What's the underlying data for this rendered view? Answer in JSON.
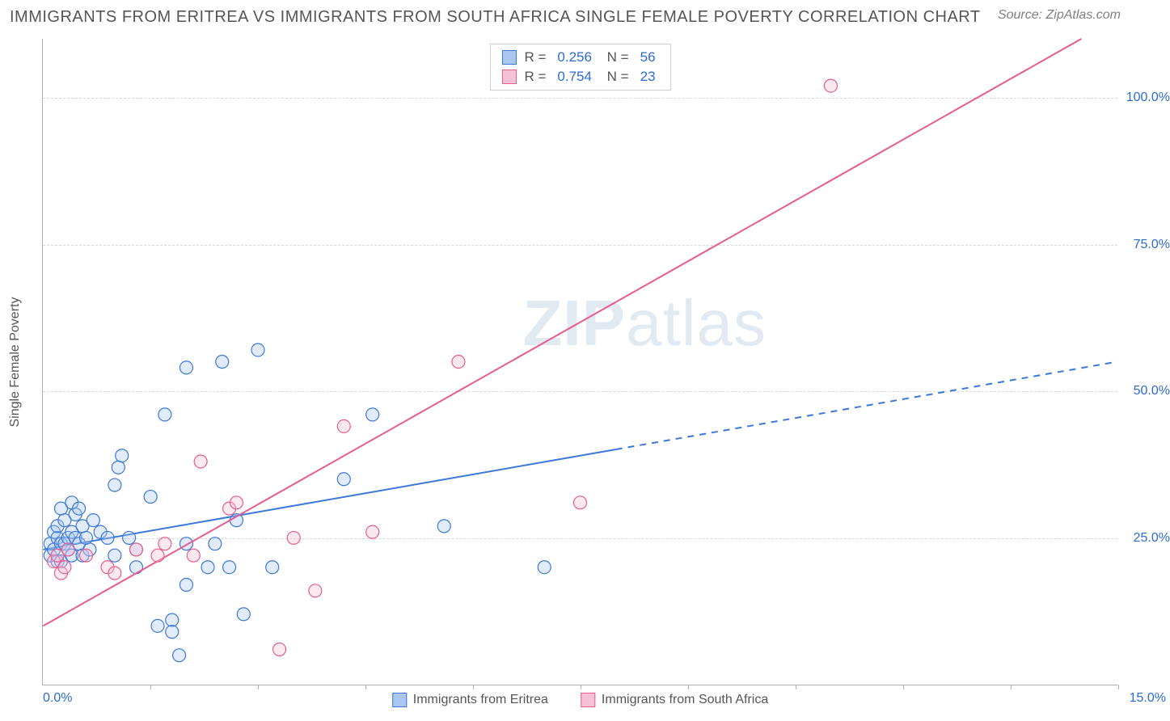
{
  "title": "IMMIGRANTS FROM ERITREA VS IMMIGRANTS FROM SOUTH AFRICA SINGLE FEMALE POVERTY CORRELATION CHART",
  "source": "Source: ZipAtlas.com",
  "watermark_bold": "ZIP",
  "watermark_thin": "atlas",
  "chart": {
    "type": "scatter-correlation",
    "background_color": "#ffffff",
    "grid_color": "#d8d8d8",
    "axis_color": "#b0b0b0",
    "value_color": "#2d6bd4",
    "label_color": "#555555",
    "xlim": [
      0,
      15
    ],
    "ylim": [
      0,
      110
    ],
    "y_ticks": [
      25,
      50,
      75,
      100
    ],
    "y_tick_labels": [
      "25.0%",
      "50.0%",
      "75.0%",
      "100.0%"
    ],
    "x_tick_minor": [
      1.5,
      3.0,
      4.5,
      6.0,
      7.5,
      9.0,
      10.5,
      12.0,
      13.5,
      15.0
    ],
    "x_tick_left": "0.0%",
    "x_tick_right": "15.0%",
    "y_label": "Single Female Poverty",
    "label_fontsize": 16,
    "title_fontsize": 20,
    "marker_radius": 8,
    "marker_fill_opacity": 0.35,
    "marker_stroke_width": 1.2,
    "series": [
      {
        "id": "eritrea",
        "label": "Immigrants from Eritrea",
        "color_stroke": "#3b78d8",
        "color_fill": "#a9c7f0",
        "R": "0.256",
        "N": "56",
        "line": {
          "x1": 0,
          "y1": 23,
          "x2": 15,
          "y2": 55,
          "solid_until_x": 8.0,
          "width": 2
        },
        "points": [
          [
            0.1,
            24
          ],
          [
            0.1,
            22
          ],
          [
            0.15,
            26
          ],
          [
            0.15,
            23
          ],
          [
            0.2,
            25
          ],
          [
            0.2,
            27
          ],
          [
            0.25,
            24
          ],
          [
            0.2,
            21
          ],
          [
            0.25,
            30
          ],
          [
            0.3,
            28
          ],
          [
            0.25,
            21
          ],
          [
            0.3,
            24
          ],
          [
            0.35,
            23
          ],
          [
            0.35,
            25
          ],
          [
            0.4,
            26
          ],
          [
            0.4,
            22
          ],
          [
            0.45,
            25
          ],
          [
            0.45,
            29
          ],
          [
            0.4,
            31
          ],
          [
            0.5,
            30
          ],
          [
            0.5,
            24
          ],
          [
            0.55,
            22
          ],
          [
            0.55,
            27
          ],
          [
            0.6,
            25
          ],
          [
            0.65,
            23
          ],
          [
            0.7,
            28
          ],
          [
            0.8,
            26
          ],
          [
            0.9,
            25
          ],
          [
            1.0,
            22
          ],
          [
            1.0,
            34
          ],
          [
            1.05,
            37
          ],
          [
            1.1,
            39
          ],
          [
            1.2,
            25
          ],
          [
            1.3,
            23
          ],
          [
            1.3,
            20
          ],
          [
            1.5,
            32
          ],
          [
            1.6,
            10
          ],
          [
            1.7,
            46
          ],
          [
            1.8,
            11
          ],
          [
            1.8,
            9
          ],
          [
            1.9,
            5
          ],
          [
            2.0,
            54
          ],
          [
            2.0,
            24
          ],
          [
            2.0,
            17
          ],
          [
            2.3,
            20
          ],
          [
            2.4,
            24
          ],
          [
            2.5,
            55
          ],
          [
            2.6,
            20
          ],
          [
            2.7,
            28
          ],
          [
            2.8,
            12
          ],
          [
            3.0,
            57
          ],
          [
            3.2,
            20
          ],
          [
            4.2,
            35
          ],
          [
            4.6,
            46
          ],
          [
            5.6,
            27
          ],
          [
            7.0,
            20
          ]
        ]
      },
      {
        "id": "south_africa",
        "label": "Immigrants from South Africa",
        "color_stroke": "#e75c8d",
        "color_fill": "#f6c1d4",
        "R": "0.754",
        "N": "23",
        "line": {
          "x1": 0,
          "y1": 10,
          "x2": 14.5,
          "y2": 110,
          "solid_until_x": 14.5,
          "width": 2
        },
        "points": [
          [
            0.15,
            21
          ],
          [
            0.2,
            22
          ],
          [
            0.25,
            19
          ],
          [
            0.3,
            20
          ],
          [
            0.35,
            23
          ],
          [
            0.6,
            22
          ],
          [
            0.9,
            20
          ],
          [
            1.0,
            19
          ],
          [
            1.3,
            23
          ],
          [
            1.6,
            22
          ],
          [
            1.7,
            24
          ],
          [
            2.1,
            22
          ],
          [
            2.2,
            38
          ],
          [
            2.6,
            30
          ],
          [
            2.7,
            31
          ],
          [
            3.3,
            6
          ],
          [
            3.5,
            25
          ],
          [
            3.8,
            16
          ],
          [
            4.2,
            44
          ],
          [
            4.6,
            26
          ],
          [
            5.8,
            55
          ],
          [
            7.5,
            31
          ],
          [
            11.0,
            102
          ]
        ]
      }
    ],
    "x_legend": [
      {
        "label": "Immigrants from Eritrea",
        "fill": "#a9c7f0",
        "stroke": "#3b78d8"
      },
      {
        "label": "Immigrants from South Africa",
        "fill": "#f6c1d4",
        "stroke": "#e75c8d"
      }
    ]
  }
}
